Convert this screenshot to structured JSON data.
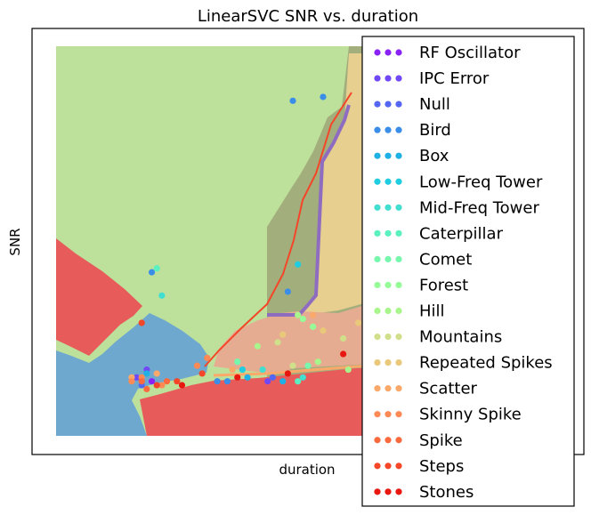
{
  "chart_data": {
    "type": "scatter",
    "title": "LinearSVC SNR vs. duration",
    "xlabel": "duration",
    "ylabel": "SNR",
    "xticks": [],
    "yticks": [],
    "xlim": [
      0,
      1
    ],
    "ylim": [
      0,
      1
    ],
    "legend_position": "right, overlapping plot",
    "regions": [
      {
        "class": "Hill",
        "color": "#bde19b"
      },
      {
        "class": "Mountains",
        "color": "#a3ae7d"
      },
      {
        "class": "Repeated Spikes",
        "color": "#e7cf90"
      },
      {
        "class": "Scatter",
        "color": "#e5ac92"
      },
      {
        "class": "Stones",
        "color": "#e85b5b"
      },
      {
        "class": "Bird",
        "color": "#6ea8cf"
      }
    ],
    "series": [
      {
        "name": "RF Oscillator",
        "color": "#8b22f5",
        "points": [
          [
            0.19,
            0.14
          ]
        ]
      },
      {
        "name": "IPC Error",
        "color": "#7048f5",
        "points": [
          [
            0.16,
            0.15
          ],
          [
            0.18,
            0.17
          ],
          [
            0.42,
            0.14
          ]
        ]
      },
      {
        "name": "Null",
        "color": "#5566f2",
        "points": [
          [
            0.17,
            0.13
          ],
          [
            0.43,
            0.15
          ]
        ]
      },
      {
        "name": "Bird",
        "color": "#3a8ee8",
        "points": [
          [
            0.47,
            0.86
          ],
          [
            0.53,
            0.87
          ],
          [
            0.19,
            0.42
          ],
          [
            0.46,
            0.37
          ],
          [
            0.32,
            0.14
          ],
          [
            0.34,
            0.14
          ]
        ]
      },
      {
        "name": "Box",
        "color": "#1fb1e6",
        "points": [
          [
            0.18,
            0.16
          ],
          [
            0.38,
            0.15
          ],
          [
            0.45,
            0.14
          ]
        ]
      },
      {
        "name": "Low-Freq Tower",
        "color": "#20cce0",
        "points": [
          [
            0.48,
            0.44
          ],
          [
            0.37,
            0.17
          ]
        ]
      },
      {
        "name": "Mid-Freq Tower",
        "color": "#42dfd0",
        "points": [
          [
            0.21,
            0.36
          ],
          [
            0.41,
            0.17
          ],
          [
            0.49,
            0.15
          ]
        ]
      },
      {
        "name": "Caterpillar",
        "color": "#5bf0c0",
        "points": [
          [
            0.2,
            0.43
          ],
          [
            0.48,
            0.14
          ]
        ]
      },
      {
        "name": "Comet",
        "color": "#76f7ad",
        "points": [
          [
            0.36,
            0.19
          ],
          [
            0.5,
            0.18
          ]
        ]
      },
      {
        "name": "Forest",
        "color": "#97fb98",
        "points": [
          [
            0.49,
            0.3
          ],
          [
            0.51,
            0.28
          ]
        ]
      },
      {
        "name": "Hill",
        "color": "#a8f58c",
        "points": [
          [
            0.48,
            0.31
          ],
          [
            0.52,
            0.19
          ],
          [
            0.58,
            0.17
          ],
          [
            0.4,
            0.23
          ]
        ]
      },
      {
        "name": "Mountains",
        "color": "#d0e08a",
        "points": [
          [
            0.47,
            0.18
          ],
          [
            0.44,
            0.24
          ],
          [
            0.57,
            0.25
          ]
        ]
      },
      {
        "name": "Repeated Spikes",
        "color": "#eac87a",
        "points": [
          [
            0.53,
            0.27
          ],
          [
            0.6,
            0.29
          ],
          [
            0.84,
            0.26
          ],
          [
            0.86,
            0.22
          ],
          [
            0.45,
            0.26
          ]
        ]
      },
      {
        "name": "Scatter",
        "color": "#fba86b",
        "points": [
          [
            0.15,
            0.15
          ],
          [
            0.2,
            0.16
          ],
          [
            0.51,
            0.31
          ],
          [
            0.35,
            0.17
          ]
        ]
      },
      {
        "name": "Skinny Spike",
        "color": "#fd8a55",
        "points": [
          [
            0.15,
            0.14
          ],
          [
            0.17,
            0.15
          ],
          [
            0.28,
            0.18
          ],
          [
            0.21,
            0.13
          ],
          [
            0.3,
            0.2
          ]
        ]
      },
      {
        "name": "Spike",
        "color": "#fb6a3e",
        "points": [
          [
            0.17,
            0.14
          ],
          [
            0.18,
            0.12
          ],
          [
            0.22,
            0.14
          ]
        ]
      },
      {
        "name": "Steps",
        "color": "#f44628",
        "points": [
          [
            0.2,
            0.13
          ],
          [
            0.24,
            0.14
          ],
          [
            0.29,
            0.16
          ],
          [
            0.17,
            0.29
          ]
        ]
      },
      {
        "name": "Stones",
        "color": "#e81810",
        "points": [
          [
            0.25,
            0.13
          ],
          [
            0.46,
            0.16
          ],
          [
            0.57,
            0.21
          ],
          [
            0.36,
            0.15
          ]
        ]
      }
    ]
  }
}
